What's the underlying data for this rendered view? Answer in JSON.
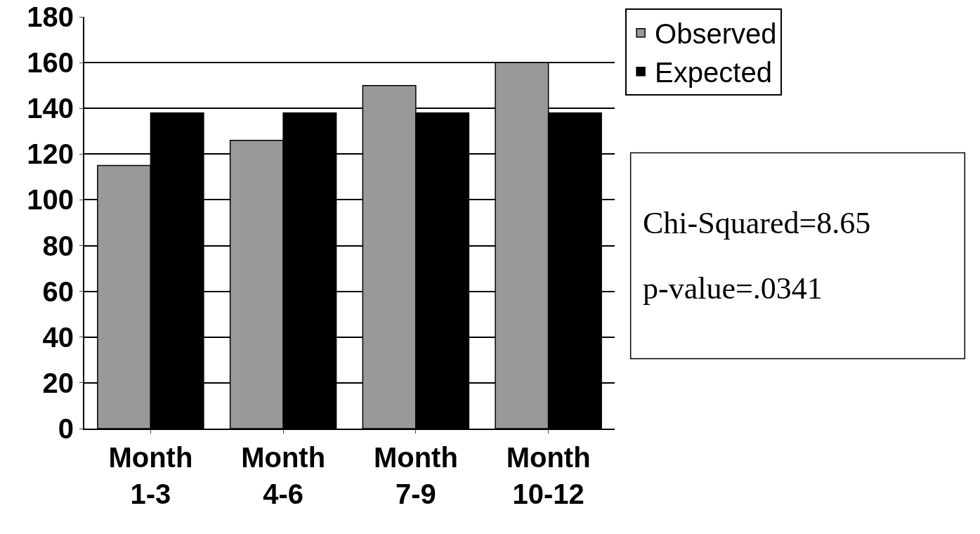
{
  "chart_data": {
    "type": "bar",
    "categories": [
      "Month 1-3",
      "Month 4-6",
      "Month 7-9",
      "Month 10-12"
    ],
    "series": [
      {
        "name": "Observed",
        "color": "#999999",
        "values": [
          115,
          126,
          150,
          160
        ]
      },
      {
        "name": "Expected",
        "color": "#000000",
        "values": [
          138,
          138,
          138,
          138
        ]
      }
    ],
    "ylim": [
      0,
      180
    ],
    "yticks": [
      0,
      20,
      40,
      60,
      80,
      100,
      120,
      140,
      160,
      180
    ],
    "grid": "y",
    "legend": "top right",
    "annotations": [
      "Chi-Squared=8.65",
      "p-value=.0341"
    ]
  }
}
